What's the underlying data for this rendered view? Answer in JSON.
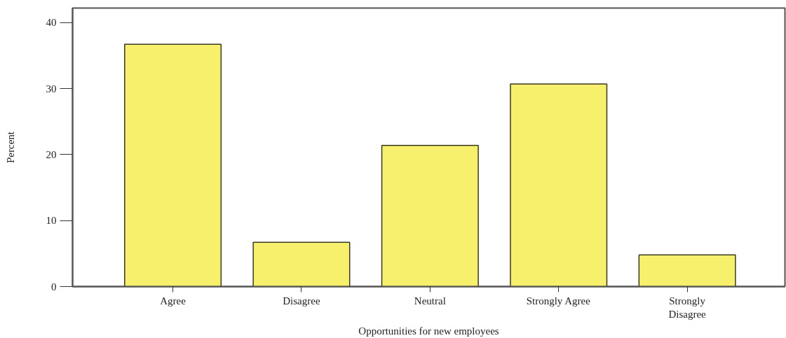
{
  "chart_data": {
    "type": "bar",
    "categories": [
      "Agree",
      "Disagree",
      "Neutral",
      "Strongly Agree",
      "Strongly Disagree"
    ],
    "values": [
      36.7,
      6.7,
      21.4,
      30.7,
      4.8
    ],
    "color": "#f7f06c",
    "xlabel": "Opportunities for new employees",
    "ylabel": "Percent",
    "ylim": [
      0,
      42.2
    ],
    "yticks": [
      0,
      10,
      20,
      30,
      40
    ],
    "grid": false
  }
}
